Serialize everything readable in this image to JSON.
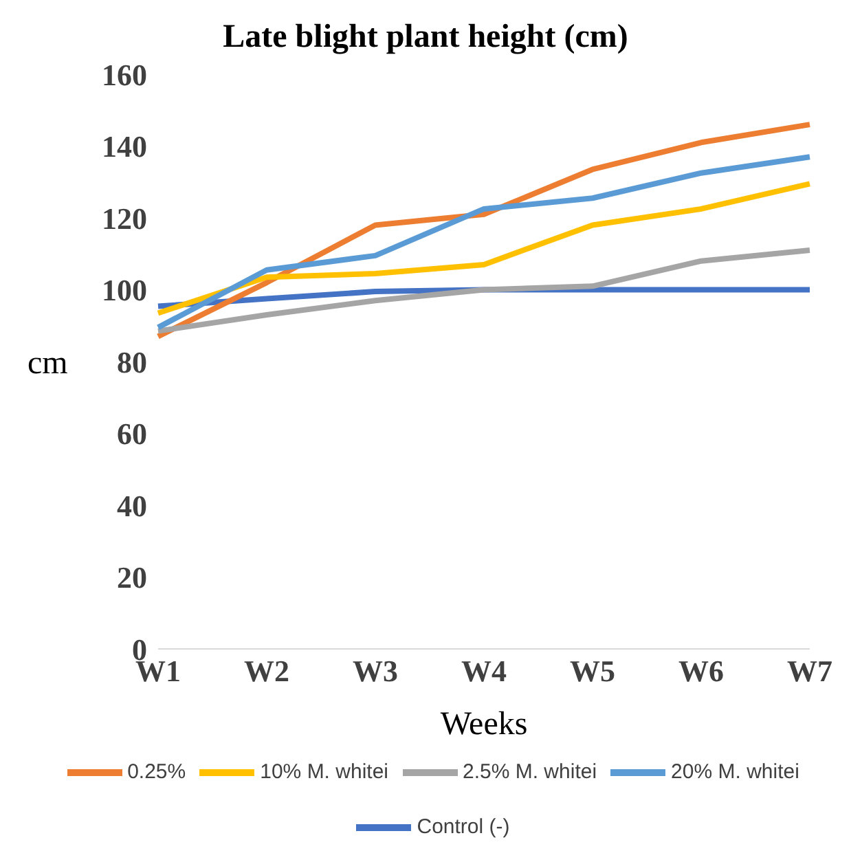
{
  "chart_data": {
    "type": "line",
    "title": "Late blight plant height (cm)",
    "xlabel": "Weeks",
    "ylabel": "cm",
    "categories": [
      "W1",
      "W2",
      "W3",
      "W4",
      "W5",
      "W6",
      "W7"
    ],
    "series": [
      {
        "name": "Control (-)",
        "color": "#4472c4",
        "values": [
          95.4,
          97.5,
          99.5,
          100,
          100,
          100,
          100
        ]
      },
      {
        "name": "0.25%",
        "color": "#ed7d31",
        "values": [
          87,
          102,
          118,
          121,
          133.5,
          141,
          146
        ]
      },
      {
        "name": "2.5% M. whitei",
        "color": "#a5a5a5",
        "values": [
          88.5,
          93,
          97,
          100,
          101,
          108,
          111
        ]
      },
      {
        "name": "10% M. whitei",
        "color": "#ffc000",
        "values": [
          93.5,
          103.5,
          104.5,
          107,
          118,
          122.5,
          129.5
        ]
      },
      {
        "name": "20% M. whitei",
        "color": "#5b9bd5",
        "values": [
          89.5,
          105.5,
          109.5,
          122.5,
          125.5,
          132.5,
          137
        ]
      }
    ],
    "ylim": [
      0,
      160
    ],
    "yticks": [
      0,
      20,
      40,
      60,
      80,
      100,
      120,
      140,
      160
    ],
    "grid": false,
    "legend": "bottom",
    "marker": "none",
    "line_style": "solid"
  }
}
